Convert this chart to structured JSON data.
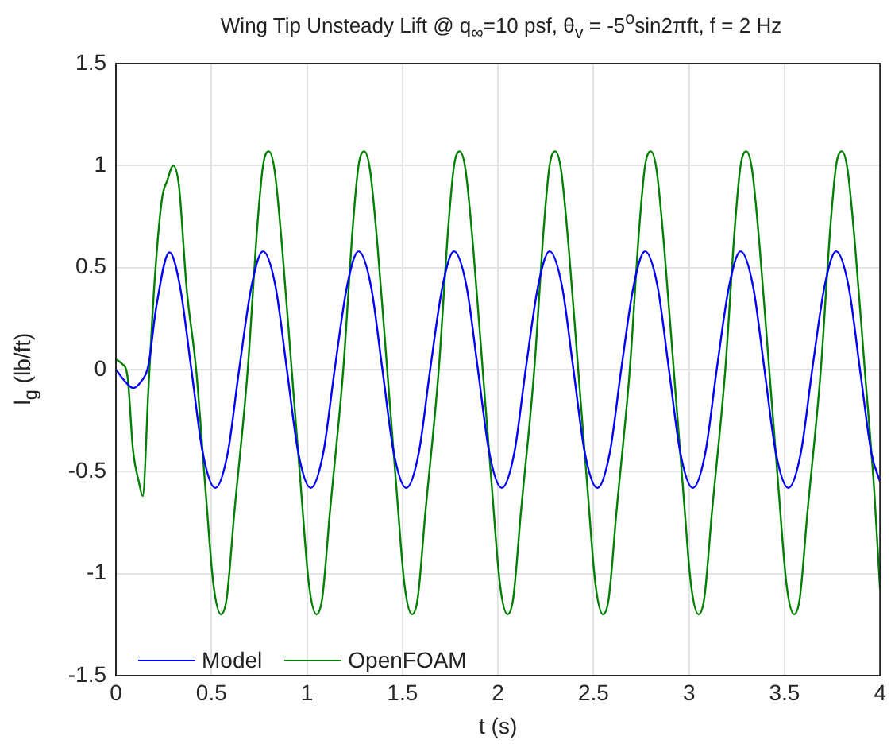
{
  "chart_data": {
    "type": "line",
    "title": "Wing Tip Unsteady Lift @ q$_{∞}$=10 psf,  θ$_{v}$ = -5$^{o}$sin2πft, f = 2 Hz",
    "xlabel": "t (s)",
    "ylabel": "l$_{g}$ (lb/ft)",
    "xlim": [
      0,
      4
    ],
    "xticks": [
      0,
      0.5,
      1,
      1.5,
      2,
      2.5,
      3,
      3.5,
      4
    ],
    "ylim": [
      -1.5,
      1.5
    ],
    "yticks": [
      -1.5,
      -1,
      -0.5,
      0,
      0.5,
      1,
      1.5
    ],
    "grid": true,
    "legend": "bottom left",
    "marker": "none",
    "line_style": "solid",
    "series": [
      {
        "name": "Model",
        "color": "#0000ff",
        "x": [
          0,
          0.05,
          0.09,
          0.13,
          0.17,
          0.21,
          0.28,
          0.335,
          0.395,
          0.455,
          0.52,
          0.585,
          0.645,
          0.71,
          0.77,
          0.835,
          0.895,
          0.955,
          1.02,
          1.085,
          1.145,
          1.21,
          1.27,
          1.335,
          1.395,
          1.455,
          1.52,
          1.585,
          1.645,
          1.71,
          1.77,
          1.835,
          1.895,
          1.955,
          2.02,
          2.085,
          2.145,
          2.21,
          2.27,
          2.335,
          2.395,
          2.455,
          2.52,
          2.585,
          2.645,
          2.71,
          2.77,
          2.835,
          2.895,
          2.955,
          3.02,
          3.085,
          3.145,
          3.21,
          3.27,
          3.335,
          3.395,
          3.455,
          3.52,
          3.585,
          3.645,
          3.71,
          3.77,
          3.835,
          3.895,
          3.955,
          4.0
        ],
        "values": [
          0,
          -0.06,
          -0.09,
          -0.06,
          0.02,
          0.3,
          0.575,
          0.41,
          0,
          -0.41,
          -0.58,
          -0.41,
          0,
          0.41,
          0.58,
          0.41,
          0,
          -0.41,
          -0.58,
          -0.41,
          0,
          0.41,
          0.58,
          0.41,
          0,
          -0.41,
          -0.58,
          -0.41,
          0,
          0.41,
          0.58,
          0.41,
          0,
          -0.41,
          -0.58,
          -0.41,
          0,
          0.41,
          0.58,
          0.41,
          0,
          -0.41,
          -0.58,
          -0.41,
          0,
          0.41,
          0.58,
          0.41,
          0,
          -0.41,
          -0.58,
          -0.41,
          0,
          0.41,
          0.58,
          0.41,
          0,
          -0.41,
          -0.58,
          -0.41,
          0,
          0.41,
          0.58,
          0.41,
          0,
          -0.41,
          -0.55
        ]
      },
      {
        "name": "OpenFOAM",
        "color": "#008000",
        "x": [
          0,
          0.03,
          0.06,
          0.09,
          0.12,
          0.14,
          0.17,
          0.2,
          0.24,
          0.27,
          0.3,
          0.33,
          0.37,
          0.42,
          0.47,
          0.51,
          0.55,
          0.58,
          0.62,
          0.69,
          0.74,
          0.77,
          0.8,
          0.83,
          0.87,
          0.92,
          0.97,
          1.01,
          1.05,
          1.08,
          1.12,
          1.19,
          1.24,
          1.27,
          1.3,
          1.33,
          1.37,
          1.42,
          1.47,
          1.51,
          1.55,
          1.58,
          1.62,
          1.69,
          1.74,
          1.77,
          1.8,
          1.83,
          1.87,
          1.92,
          1.97,
          2.01,
          2.05,
          2.08,
          2.12,
          2.19,
          2.24,
          2.27,
          2.3,
          2.33,
          2.37,
          2.42,
          2.47,
          2.51,
          2.55,
          2.58,
          2.62,
          2.69,
          2.74,
          2.77,
          2.8,
          2.83,
          2.87,
          2.92,
          2.97,
          3.01,
          3.05,
          3.08,
          3.12,
          3.19,
          3.24,
          3.27,
          3.3,
          3.33,
          3.37,
          3.42,
          3.47,
          3.51,
          3.55,
          3.58,
          3.62,
          3.69,
          3.74,
          3.77,
          3.8,
          3.83,
          3.87,
          3.92,
          3.97,
          4.0
        ],
        "values": [
          0.05,
          0.03,
          -0.03,
          -0.4,
          -0.55,
          -0.62,
          -0.1,
          0.4,
          0.83,
          0.93,
          1.0,
          0.9,
          0.4,
          0,
          -0.6,
          -1.05,
          -1.2,
          -1.12,
          -0.7,
          0,
          0.7,
          1.0,
          1.07,
          0.98,
          0.6,
          0,
          -0.6,
          -1.05,
          -1.2,
          -1.12,
          -0.7,
          0,
          0.7,
          1.0,
          1.07,
          0.98,
          0.6,
          0,
          -0.6,
          -1.05,
          -1.2,
          -1.12,
          -0.7,
          0,
          0.7,
          1.0,
          1.07,
          0.98,
          0.6,
          0,
          -0.6,
          -1.05,
          -1.2,
          -1.12,
          -0.7,
          0,
          0.7,
          1.0,
          1.07,
          0.98,
          0.6,
          0,
          -0.6,
          -1.05,
          -1.2,
          -1.12,
          -0.7,
          0,
          0.7,
          1.0,
          1.07,
          0.98,
          0.6,
          0,
          -0.6,
          -1.05,
          -1.2,
          -1.12,
          -0.7,
          0,
          0.7,
          1.0,
          1.07,
          0.98,
          0.6,
          0,
          -0.6,
          -1.05,
          -1.2,
          -1.12,
          -0.7,
          0,
          0.7,
          1.0,
          1.07,
          0.98,
          0.6,
          0,
          -0.6,
          -1.08
        ]
      }
    ]
  }
}
